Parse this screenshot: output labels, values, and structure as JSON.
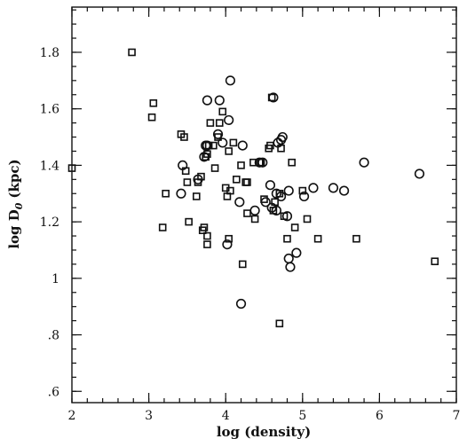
{
  "chart_data": {
    "type": "scatter",
    "title": "",
    "xlabel": "log (density)",
    "ylabel": "log D",
    "ylabel_subscript": "0",
    "ylabel_unit": "(kpc)",
    "xlim": [
      2,
      7
    ],
    "ylim": [
      0.56,
      1.96
    ],
    "x_major_ticks": [
      2,
      3,
      4,
      5,
      6,
      7
    ],
    "x_tick_labels": [
      "2",
      "3",
      "4",
      "5",
      "6",
      "7"
    ],
    "y_major_ticks": [
      0.6,
      0.8,
      1.0,
      1.2,
      1.4,
      1.6,
      1.8
    ],
    "y_tick_labels": [
      ".6",
      ".8",
      "1",
      "1.2",
      "1.4",
      "1.6",
      "1.8"
    ],
    "x_minor_step": 0.2,
    "y_minor_step": 0.05,
    "grid": false,
    "legend": "none",
    "series": [
      {
        "marker": "square",
        "points": [
          [
            2.0,
            1.39
          ],
          [
            2.78,
            1.8
          ],
          [
            3.06,
            1.62
          ],
          [
            3.04,
            1.57
          ],
          [
            3.18,
            1.18
          ],
          [
            3.22,
            1.3
          ],
          [
            3.42,
            1.51
          ],
          [
            3.46,
            1.5
          ],
          [
            3.48,
            1.38
          ],
          [
            3.5,
            1.34
          ],
          [
            3.52,
            1.2
          ],
          [
            3.62,
            1.29
          ],
          [
            3.64,
            1.34
          ],
          [
            3.68,
            1.36
          ],
          [
            3.7,
            1.17
          ],
          [
            3.72,
            1.18
          ],
          [
            3.74,
            1.43
          ],
          [
            3.76,
            1.44
          ],
          [
            3.78,
            1.47
          ],
          [
            3.8,
            1.55
          ],
          [
            3.76,
            1.15
          ],
          [
            3.76,
            1.12
          ],
          [
            3.84,
            1.47
          ],
          [
            3.86,
            1.39
          ],
          [
            3.9,
            1.5
          ],
          [
            3.92,
            1.55
          ],
          [
            3.96,
            1.59
          ],
          [
            4.0,
            1.32
          ],
          [
            4.02,
            1.29
          ],
          [
            4.04,
            1.14
          ],
          [
            4.06,
            1.31
          ],
          [
            4.04,
            1.45
          ],
          [
            4.1,
            1.48
          ],
          [
            4.14,
            1.35
          ],
          [
            4.2,
            1.4
          ],
          [
            4.22,
            1.05
          ],
          [
            4.26,
            1.34
          ],
          [
            4.28,
            1.34
          ],
          [
            4.28,
            1.23
          ],
          [
            4.36,
            1.41
          ],
          [
            4.38,
            1.21
          ],
          [
            4.44,
            1.41
          ],
          [
            4.46,
            1.41
          ],
          [
            4.5,
            1.28
          ],
          [
            4.56,
            1.46
          ],
          [
            4.58,
            1.47
          ],
          [
            4.6,
            1.64
          ],
          [
            4.62,
            1.24
          ],
          [
            4.64,
            1.27
          ],
          [
            4.7,
            1.3
          ],
          [
            4.72,
            1.46
          ],
          [
            4.7,
            0.84
          ],
          [
            4.76,
            1.22
          ],
          [
            4.8,
            1.14
          ],
          [
            4.86,
            1.41
          ],
          [
            4.9,
            1.18
          ],
          [
            5.0,
            1.31
          ],
          [
            5.06,
            1.21
          ],
          [
            5.2,
            1.14
          ],
          [
            5.7,
            1.14
          ],
          [
            6.72,
            1.06
          ]
        ]
      },
      {
        "marker": "circle",
        "points": [
          [
            3.42,
            1.3
          ],
          [
            3.44,
            1.4
          ],
          [
            3.64,
            1.35
          ],
          [
            3.72,
            1.43
          ],
          [
            3.74,
            1.47
          ],
          [
            3.76,
            1.47
          ],
          [
            3.76,
            1.63
          ],
          [
            3.9,
            1.51
          ],
          [
            3.92,
            1.63
          ],
          [
            3.96,
            1.48
          ],
          [
            4.04,
            1.56
          ],
          [
            4.06,
            1.7
          ],
          [
            4.02,
            1.12
          ],
          [
            4.18,
            1.27
          ],
          [
            4.22,
            1.47
          ],
          [
            4.2,
            0.91
          ],
          [
            4.38,
            1.24
          ],
          [
            4.44,
            1.41
          ],
          [
            4.48,
            1.41
          ],
          [
            4.52,
            1.27
          ],
          [
            4.58,
            1.33
          ],
          [
            4.6,
            1.25
          ],
          [
            4.62,
            1.64
          ],
          [
            4.66,
            1.24
          ],
          [
            4.66,
            1.3
          ],
          [
            4.68,
            1.48
          ],
          [
            4.72,
            1.49
          ],
          [
            4.74,
            1.5
          ],
          [
            4.72,
            1.29
          ],
          [
            4.8,
            1.22
          ],
          [
            4.82,
            1.31
          ],
          [
            4.82,
            1.07
          ],
          [
            4.84,
            1.04
          ],
          [
            4.92,
            1.09
          ],
          [
            5.02,
            1.29
          ],
          [
            5.14,
            1.32
          ],
          [
            5.4,
            1.32
          ],
          [
            5.54,
            1.31
          ],
          [
            5.8,
            1.41
          ],
          [
            6.52,
            1.37
          ]
        ]
      }
    ]
  }
}
